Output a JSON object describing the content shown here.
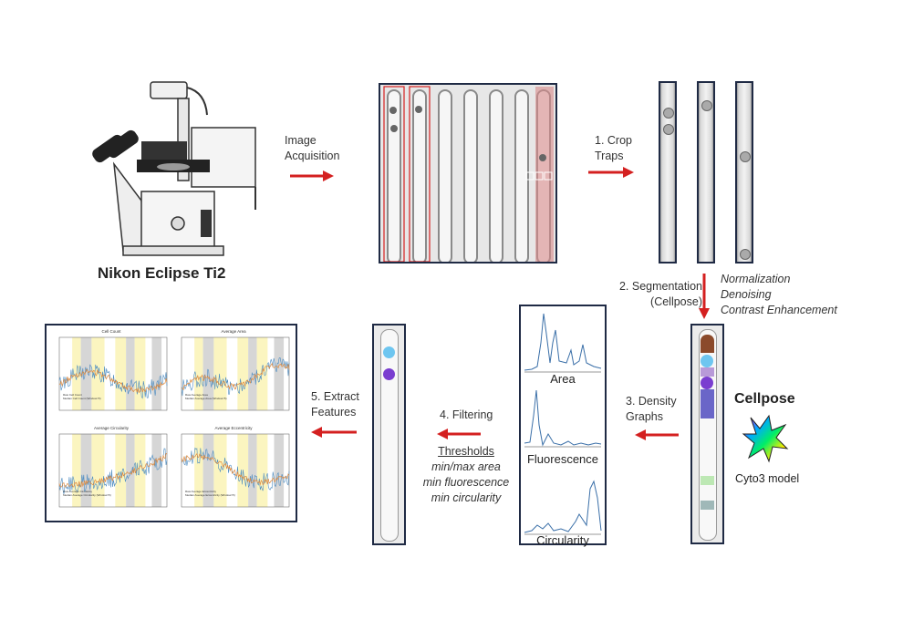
{
  "microscope": {
    "label": "Nikon Eclipse Ti2"
  },
  "steps": {
    "acquisition": [
      "Image",
      "Acquisition"
    ],
    "crop": [
      "1. Crop",
      "Traps"
    ],
    "segmentation": [
      "2. Segmentation",
      "(Cellpose)"
    ],
    "preprocessing": [
      "Normalization",
      "Denoising",
      "Contrast Enhancement"
    ],
    "density": [
      "3. Density",
      "Graphs"
    ],
    "filtering": "4. Filtering",
    "extract": [
      "5. Extract",
      "Features"
    ]
  },
  "cellpose": {
    "title": "Cellpose",
    "model": "Cyto3 model"
  },
  "density_graphs": [
    "Area",
    "Fluorescence",
    "Circularity"
  ],
  "thresholds": {
    "title": "Thresholds",
    "items": [
      "min/max area",
      "min fluorescence",
      "min circularity"
    ]
  },
  "feature_panels": [
    {
      "title": "Cell Count",
      "legend": [
        "Raw Cell Count",
        "Median Cell Count (Window=5)"
      ]
    },
    {
      "title": "Average Area",
      "legend": [
        "Raw Average Area",
        "Median Average Area (Window=5)"
      ]
    },
    {
      "title": "Average Circularity",
      "legend": [
        "Raw Average Circularity",
        "Median Average Circularity (Window=5)"
      ]
    },
    {
      "title": "Average Eccentricity",
      "legend": [
        "Raw Average Eccentricity",
        "Median Average Eccentricity (Window=5)"
      ]
    }
  ],
  "colors": {
    "arrow": "#d42020",
    "frame": "#1f2a44",
    "series_raw": "#4a8ac0",
    "series_median": "#e08a3c",
    "band_yellow": "#fbf5c0",
    "band_gray": "#d6d6d6"
  }
}
